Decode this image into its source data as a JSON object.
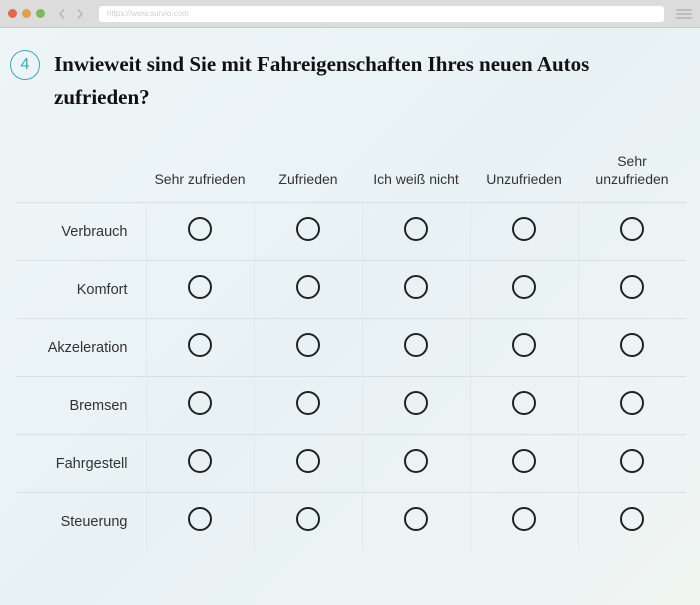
{
  "browser": {
    "url": "https://www.survio.com"
  },
  "question": {
    "number": "4",
    "text": "Inwieweit sind Sie mit Fahreigenschaften Ihres neuen Autos zufrieden?"
  },
  "matrix": {
    "columns": [
      "Sehr zufrieden",
      "Zufrieden",
      "Ich weiß nicht",
      "Unzufrieden",
      "Sehr unzufrieden"
    ],
    "rows": [
      "Verbrauch",
      "Komfort",
      "Akzeleration",
      "Bremsen",
      "Fahrgestell",
      "Steuerung"
    ]
  }
}
